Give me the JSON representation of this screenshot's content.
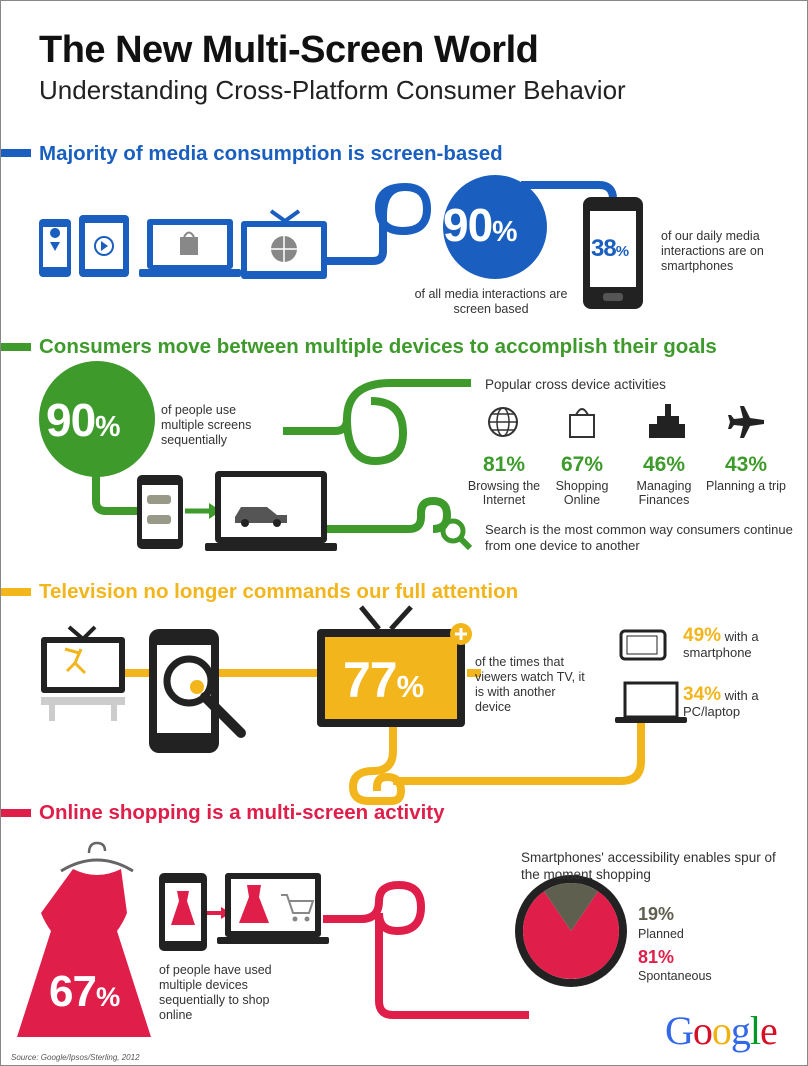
{
  "header": {
    "title": "The New Multi-Screen World",
    "subtitle": "Understanding Cross-Platform Consumer Behavior"
  },
  "s1": {
    "title": "Majority of media consumption is screen-based",
    "big_value": "90",
    "big_unit": "%",
    "big_caption": "of all media interactions are screen based",
    "phone_value": "38",
    "phone_unit": "%",
    "phone_caption": "of our daily media interactions are on smartphones",
    "color": "#1a5fbf"
  },
  "s2": {
    "title": "Consumers move between multiple devices to accomplish their goals",
    "big_value": "90",
    "big_unit": "%",
    "big_caption": "of people use multiple screens sequentially",
    "activities_title": "Popular cross device activities",
    "activities": [
      {
        "value": "81%",
        "label": "Browsing the Internet",
        "icon": "globe-icon"
      },
      {
        "value": "67%",
        "label": "Shopping Online",
        "icon": "shopping-bag-icon"
      },
      {
        "value": "46%",
        "label": "Managing Finances",
        "icon": "finance-building-icon"
      },
      {
        "value": "43%",
        "label": "Planning a trip",
        "icon": "airplane-icon"
      }
    ],
    "search_caption": "Search is the most common way consumers continue from one device to another",
    "color": "#3d9a2b"
  },
  "s3": {
    "title": "Television no longer commands our full attention",
    "big_value": "77",
    "big_unit": "%",
    "big_caption": "of the times that viewers watch TV, it is with another device",
    "items": [
      {
        "value": "49%",
        "label": "with a smartphone"
      },
      {
        "value": "34%",
        "label": "with a PC/laptop"
      }
    ],
    "color": "#f2b51b"
  },
  "s4": {
    "title": "Online shopping is a multi-screen activity",
    "big_value": "67",
    "big_unit": "%",
    "big_caption": "of people have used multiple devices sequentially to shop online",
    "pie_title": "Smartphones' accessibility enables spur of the moment shopping",
    "pie": [
      {
        "value": "19%",
        "label": "Planned",
        "fraction": 0.19,
        "color": "#5f5f4f"
      },
      {
        "value": "81%",
        "label": "Spontaneous",
        "fraction": 0.81,
        "color": "#df1f4a"
      }
    ],
    "color": "#df1f4a"
  },
  "footer": {
    "logo": "Google",
    "source": "Source: Google/Ipsos/Sterling, 2012"
  }
}
